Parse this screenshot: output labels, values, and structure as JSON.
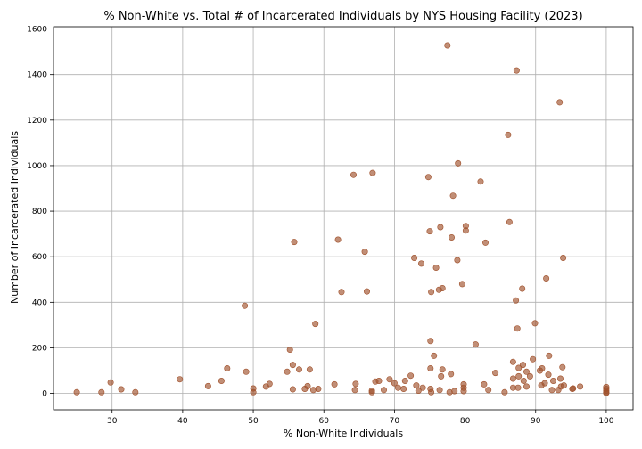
{
  "chart_data": {
    "type": "scatter",
    "title": "% Non-White vs. Total # of Incarcerated Individuals by NYS Housing Facility (2023)",
    "xlabel": "% Non-White Individuals",
    "ylabel": "Number of Incarcerated Individuals",
    "xlim": [
      21.7,
      103.8
    ],
    "ylim": [
      -72,
      1610
    ],
    "xticks": [
      30,
      40,
      50,
      60,
      70,
      80,
      90,
      100
    ],
    "yticks": [
      0,
      200,
      400,
      600,
      800,
      1000,
      1200,
      1400,
      1600
    ],
    "grid": true,
    "point_color": "#a0522d",
    "points": [
      {
        "x": 25.0,
        "y": 5
      },
      {
        "x": 28.5,
        "y": 5
      },
      {
        "x": 29.8,
        "y": 48
      },
      {
        "x": 31.3,
        "y": 18
      },
      {
        "x": 33.3,
        "y": 5
      },
      {
        "x": 39.6,
        "y": 62
      },
      {
        "x": 43.6,
        "y": 32
      },
      {
        "x": 45.5,
        "y": 55
      },
      {
        "x": 46.3,
        "y": 110
      },
      {
        "x": 48.8,
        "y": 385
      },
      {
        "x": 49.0,
        "y": 95
      },
      {
        "x": 50.0,
        "y": 22
      },
      {
        "x": 50.0,
        "y": 5
      },
      {
        "x": 51.8,
        "y": 30
      },
      {
        "x": 52.3,
        "y": 42
      },
      {
        "x": 54.8,
        "y": 95
      },
      {
        "x": 55.2,
        "y": 192
      },
      {
        "x": 55.6,
        "y": 125
      },
      {
        "x": 55.6,
        "y": 18
      },
      {
        "x": 55.8,
        "y": 665
      },
      {
        "x": 56.5,
        "y": 105
      },
      {
        "x": 57.3,
        "y": 20
      },
      {
        "x": 57.7,
        "y": 32
      },
      {
        "x": 58.0,
        "y": 105
      },
      {
        "x": 58.5,
        "y": 15
      },
      {
        "x": 58.8,
        "y": 305
      },
      {
        "x": 59.2,
        "y": 20
      },
      {
        "x": 61.5,
        "y": 40
      },
      {
        "x": 62.0,
        "y": 675
      },
      {
        "x": 62.5,
        "y": 445
      },
      {
        "x": 64.2,
        "y": 960
      },
      {
        "x": 64.4,
        "y": 15
      },
      {
        "x": 64.5,
        "y": 42
      },
      {
        "x": 65.8,
        "y": 622
      },
      {
        "x": 66.1,
        "y": 448
      },
      {
        "x": 66.8,
        "y": 5
      },
      {
        "x": 66.8,
        "y": 12
      },
      {
        "x": 66.9,
        "y": 968
      },
      {
        "x": 67.3,
        "y": 52
      },
      {
        "x": 67.8,
        "y": 55
      },
      {
        "x": 68.5,
        "y": 15
      },
      {
        "x": 69.3,
        "y": 62
      },
      {
        "x": 70.0,
        "y": 45
      },
      {
        "x": 70.5,
        "y": 25
      },
      {
        "x": 71.3,
        "y": 20
      },
      {
        "x": 71.5,
        "y": 55
      },
      {
        "x": 72.3,
        "y": 78
      },
      {
        "x": 72.8,
        "y": 595
      },
      {
        "x": 73.1,
        "y": 35
      },
      {
        "x": 73.4,
        "y": 12
      },
      {
        "x": 73.8,
        "y": 570
      },
      {
        "x": 74.0,
        "y": 25
      },
      {
        "x": 74.8,
        "y": 950
      },
      {
        "x": 75.0,
        "y": 712
      },
      {
        "x": 75.1,
        "y": 110
      },
      {
        "x": 75.1,
        "y": 230
      },
      {
        "x": 75.2,
        "y": 445
      },
      {
        "x": 75.1,
        "y": 20
      },
      {
        "x": 75.2,
        "y": 5
      },
      {
        "x": 75.6,
        "y": 165
      },
      {
        "x": 75.9,
        "y": 552
      },
      {
        "x": 76.3,
        "y": 455
      },
      {
        "x": 76.4,
        "y": 15
      },
      {
        "x": 76.5,
        "y": 730
      },
      {
        "x": 76.6,
        "y": 75
      },
      {
        "x": 76.8,
        "y": 462
      },
      {
        "x": 76.8,
        "y": 105
      },
      {
        "x": 77.5,
        "y": 1528
      },
      {
        "x": 77.8,
        "y": 5
      },
      {
        "x": 78.0,
        "y": 85
      },
      {
        "x": 78.1,
        "y": 685
      },
      {
        "x": 78.3,
        "y": 868
      },
      {
        "x": 78.5,
        "y": 10
      },
      {
        "x": 78.9,
        "y": 585
      },
      {
        "x": 79.0,
        "y": 1010
      },
      {
        "x": 79.6,
        "y": 480
      },
      {
        "x": 79.8,
        "y": 40
      },
      {
        "x": 79.8,
        "y": 25
      },
      {
        "x": 79.8,
        "y": 10
      },
      {
        "x": 80.1,
        "y": 715
      },
      {
        "x": 80.1,
        "y": 735
      },
      {
        "x": 81.5,
        "y": 215
      },
      {
        "x": 82.2,
        "y": 930
      },
      {
        "x": 82.7,
        "y": 40
      },
      {
        "x": 82.9,
        "y": 662
      },
      {
        "x": 83.3,
        "y": 15
      },
      {
        "x": 84.3,
        "y": 90
      },
      {
        "x": 85.6,
        "y": 5
      },
      {
        "x": 86.1,
        "y": 1135
      },
      {
        "x": 86.3,
        "y": 752
      },
      {
        "x": 86.8,
        "y": 138
      },
      {
        "x": 86.8,
        "y": 65
      },
      {
        "x": 86.8,
        "y": 25
      },
      {
        "x": 87.2,
        "y": 408
      },
      {
        "x": 87.3,
        "y": 1418
      },
      {
        "x": 87.4,
        "y": 285
      },
      {
        "x": 87.5,
        "y": 25
      },
      {
        "x": 87.6,
        "y": 112
      },
      {
        "x": 87.6,
        "y": 75
      },
      {
        "x": 88.1,
        "y": 460
      },
      {
        "x": 88.2,
        "y": 125
      },
      {
        "x": 88.3,
        "y": 55
      },
      {
        "x": 88.7,
        "y": 30
      },
      {
        "x": 88.7,
        "y": 95
      },
      {
        "x": 89.2,
        "y": 75
      },
      {
        "x": 89.6,
        "y": 150
      },
      {
        "x": 89.9,
        "y": 308
      },
      {
        "x": 90.6,
        "y": 100
      },
      {
        "x": 90.8,
        "y": 35
      },
      {
        "x": 90.9,
        "y": 110
      },
      {
        "x": 91.3,
        "y": 45
      },
      {
        "x": 91.5,
        "y": 505
      },
      {
        "x": 91.8,
        "y": 82
      },
      {
        "x": 91.9,
        "y": 165
      },
      {
        "x": 92.3,
        "y": 15
      },
      {
        "x": 92.5,
        "y": 55
      },
      {
        "x": 93.2,
        "y": 15
      },
      {
        "x": 93.4,
        "y": 1278
      },
      {
        "x": 93.5,
        "y": 65
      },
      {
        "x": 93.6,
        "y": 30
      },
      {
        "x": 93.8,
        "y": 115
      },
      {
        "x": 93.9,
        "y": 595
      },
      {
        "x": 94.0,
        "y": 35
      },
      {
        "x": 95.2,
        "y": 20
      },
      {
        "x": 95.3,
        "y": 22
      },
      {
        "x": 96.3,
        "y": 30
      },
      {
        "x": 100.0,
        "y": 28
      },
      {
        "x": 100.0,
        "y": 20
      },
      {
        "x": 100.0,
        "y": 12
      },
      {
        "x": 100.0,
        "y": 5
      },
      {
        "x": 100.0,
        "y": 2
      }
    ]
  }
}
